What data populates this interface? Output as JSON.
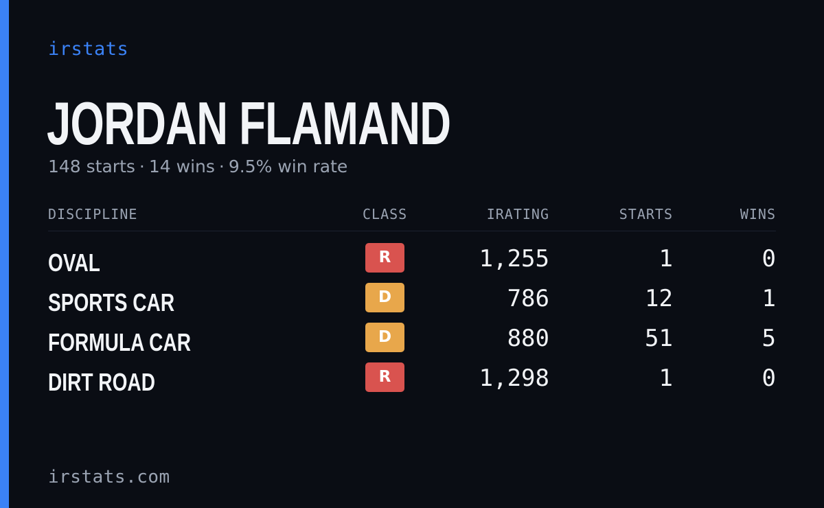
{
  "brand": "irstats",
  "driver": {
    "name": "JORDAN FLAMAND",
    "starts_text": "148 starts",
    "wins_text": "14 wins",
    "win_rate_text": "9.5% win rate",
    "separator": "·"
  },
  "table": {
    "columns": {
      "discipline": "DISCIPLINE",
      "class": "CLASS",
      "irating": "IRATING",
      "starts": "STARTS",
      "wins": "WINS"
    },
    "rows": [
      {
        "discipline": "OVAL",
        "class": "R",
        "class_color": "#d9534f",
        "irating": "1,255",
        "starts": "1",
        "wins": "0"
      },
      {
        "discipline": "SPORTS CAR",
        "class": "D",
        "class_color": "#e8a74b",
        "irating": "786",
        "starts": "12",
        "wins": "1"
      },
      {
        "discipline": "FORMULA CAR",
        "class": "D",
        "class_color": "#e8a74b",
        "irating": "880",
        "starts": "51",
        "wins": "5"
      },
      {
        "discipline": "DIRT ROAD",
        "class": "R",
        "class_color": "#d9534f",
        "irating": "1,298",
        "starts": "1",
        "wins": "0"
      }
    ]
  },
  "footer": "irstats.com",
  "colors": {
    "background": "#0a0d14",
    "accent": "#3b82f6",
    "muted_text": "#9aa3b2",
    "primary_text": "#f2f4f7"
  }
}
